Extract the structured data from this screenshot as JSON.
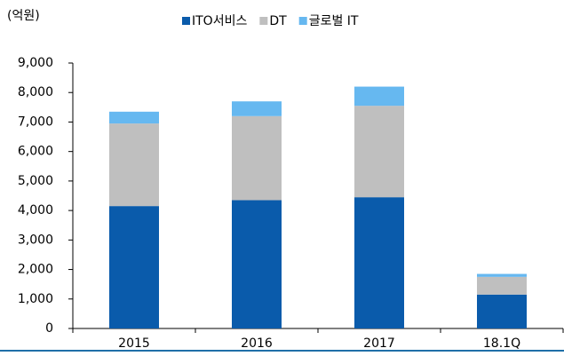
{
  "chart_data": {
    "type": "stacked_bar",
    "y_label": "(억원)",
    "categories": [
      "2015",
      "2016",
      "2017",
      "18.1Q"
    ],
    "series": [
      {
        "name": "ITO서비스",
        "color": "#0a5bab",
        "values": [
          4150,
          4350,
          4450,
          1150
        ]
      },
      {
        "name": "DT",
        "color": "#bfbfbf",
        "values": [
          2800,
          2850,
          3100,
          600
        ]
      },
      {
        "name": "글로벌 IT",
        "color": "#66b8f0",
        "values": [
          400,
          500,
          650,
          100
        ]
      }
    ],
    "ylim": [
      0,
      9000
    ],
    "yticks": [
      0,
      {
        "value": 1000,
        "label": "1,000"
      },
      {
        "value": 2000,
        "label": "2,000"
      },
      {
        "value": 3000,
        "label": "3,000"
      },
      {
        "value": 4000,
        "label": "4,000"
      },
      {
        "value": 5000,
        "label": "5,000"
      },
      {
        "value": 6000,
        "label": "6,000"
      },
      {
        "value": 7000,
        "label": "7,000"
      },
      {
        "value": 8000,
        "label": "8,000"
      },
      {
        "value": 9000,
        "label": "9,000"
      }
    ],
    "grid": false,
    "legend": "top"
  }
}
